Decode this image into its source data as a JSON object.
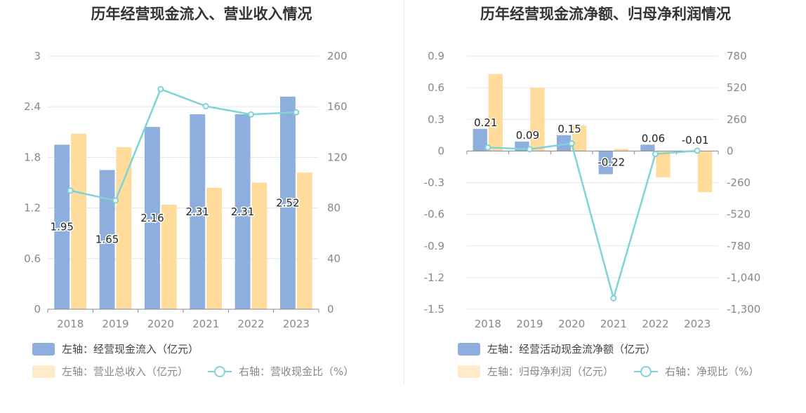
{
  "colors": {
    "primary_bar": "#8eaedd",
    "secondary_bar": "#ffdb9c",
    "line": "#7fd3d8",
    "grid": "#e3e6ef",
    "axis": "#888888"
  },
  "left": {
    "title": "历年经营现金流入、营业收入情况",
    "legend": {
      "bar1": "左轴：经营现金流入（亿元）",
      "bar2": "左轴：营业总收入（亿元）",
      "line": "右轴：营收现金比（%）"
    }
  },
  "right": {
    "title": "历年经营现金流净额、归母净利润情况",
    "legend": {
      "bar1": "左轴：经营活动现金流净额（亿元）",
      "bar2": "左轴：归母净利润（亿元）",
      "line": "右轴：净现比（%）"
    }
  },
  "chart_data": [
    {
      "type": "bar",
      "title": "历年经营现金流入、营业收入情况",
      "categories": [
        "2018",
        "2019",
        "2020",
        "2021",
        "2022",
        "2023"
      ],
      "series": [
        {
          "name": "左轴：经营现金流入（亿元）",
          "axis": "left",
          "values": [
            1.95,
            1.65,
            2.16,
            2.31,
            2.31,
            2.52
          ],
          "data_labels": [
            "1.95",
            "1.65",
            "2.16",
            "2.31",
            "2.31",
            "2.52"
          ]
        },
        {
          "name": "左轴：营业总收入（亿元）",
          "axis": "left",
          "values": [
            2.08,
            1.92,
            1.24,
            1.44,
            1.5,
            1.62
          ]
        },
        {
          "name": "右轴：营收现金比（%）",
          "axis": "right",
          "type": "line",
          "values": [
            93.7,
            85.9,
            173.9,
            160.4,
            153.9,
            155.6
          ]
        }
      ],
      "y_left": {
        "ticks": [
          "0",
          "0.6",
          "1.2",
          "1.8",
          "2.4",
          "3"
        ],
        "range": [
          0,
          3
        ]
      },
      "y_right": {
        "ticks": [
          "0",
          "40",
          "80",
          "120",
          "160",
          "200"
        ],
        "range": [
          0,
          200
        ]
      },
      "grid": true,
      "legend_position": "bottom"
    },
    {
      "type": "bar",
      "title": "历年经营现金流净额、归母净利润情况",
      "categories": [
        "2018",
        "2019",
        "2020",
        "2021",
        "2022",
        "2023"
      ],
      "series": [
        {
          "name": "左轴：经营活动现金流净额（亿元）",
          "axis": "left",
          "values": [
            0.21,
            0.09,
            0.15,
            -0.22,
            0.06,
            -0.01
          ],
          "data_labels": [
            "0.21",
            "0.09",
            "0.15",
            "-0.22",
            "0.06",
            "-0.01"
          ]
        },
        {
          "name": "左轴：归母净利润（亿元）",
          "axis": "left",
          "values": [
            0.73,
            0.6,
            0.24,
            0.02,
            -0.25,
            -0.39
          ]
        },
        {
          "name": "右轴：净现比（%）",
          "axis": "right",
          "type": "line",
          "values": [
            28.8,
            15,
            62.5,
            -1210,
            -24,
            2.6
          ]
        }
      ],
      "y_left": {
        "ticks": [
          "-1.5",
          "-1.2",
          "-0.9",
          "-0.6",
          "-0.3",
          "0",
          "0.3",
          "0.6",
          "0.9"
        ],
        "range": [
          -1.5,
          0.9
        ]
      },
      "y_right": {
        "ticks": [
          "-1,300",
          "-1,040",
          "-780",
          "-520",
          "-260",
          "0",
          "260",
          "520",
          "780"
        ],
        "range": [
          -1300,
          780
        ]
      },
      "grid": true,
      "legend_position": "bottom"
    }
  ]
}
